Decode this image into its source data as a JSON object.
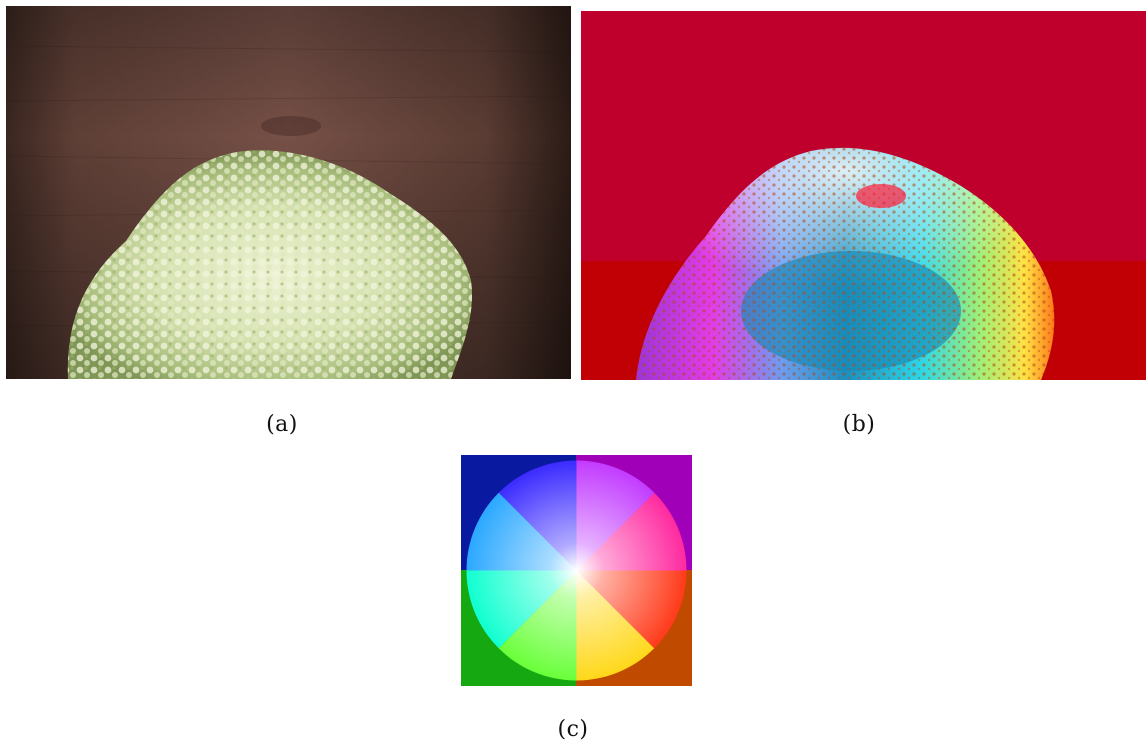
{
  "figure": {
    "panels": [
      {
        "id": "a",
        "caption": "(a)",
        "content": "photo-hydrangea"
      },
      {
        "id": "b",
        "caption": "(b)",
        "content": "optical-flow-visualization"
      },
      {
        "id": "c",
        "caption": "(c)",
        "content": "flow-color-wheel"
      }
    ]
  },
  "colors": {
    "wood_dark": "#3a231d",
    "wood_mid": "#6e4b41",
    "flower_green": "#c9d8a6",
    "flow_background": "#c0002c",
    "flow_lower_background": "#c00000"
  }
}
